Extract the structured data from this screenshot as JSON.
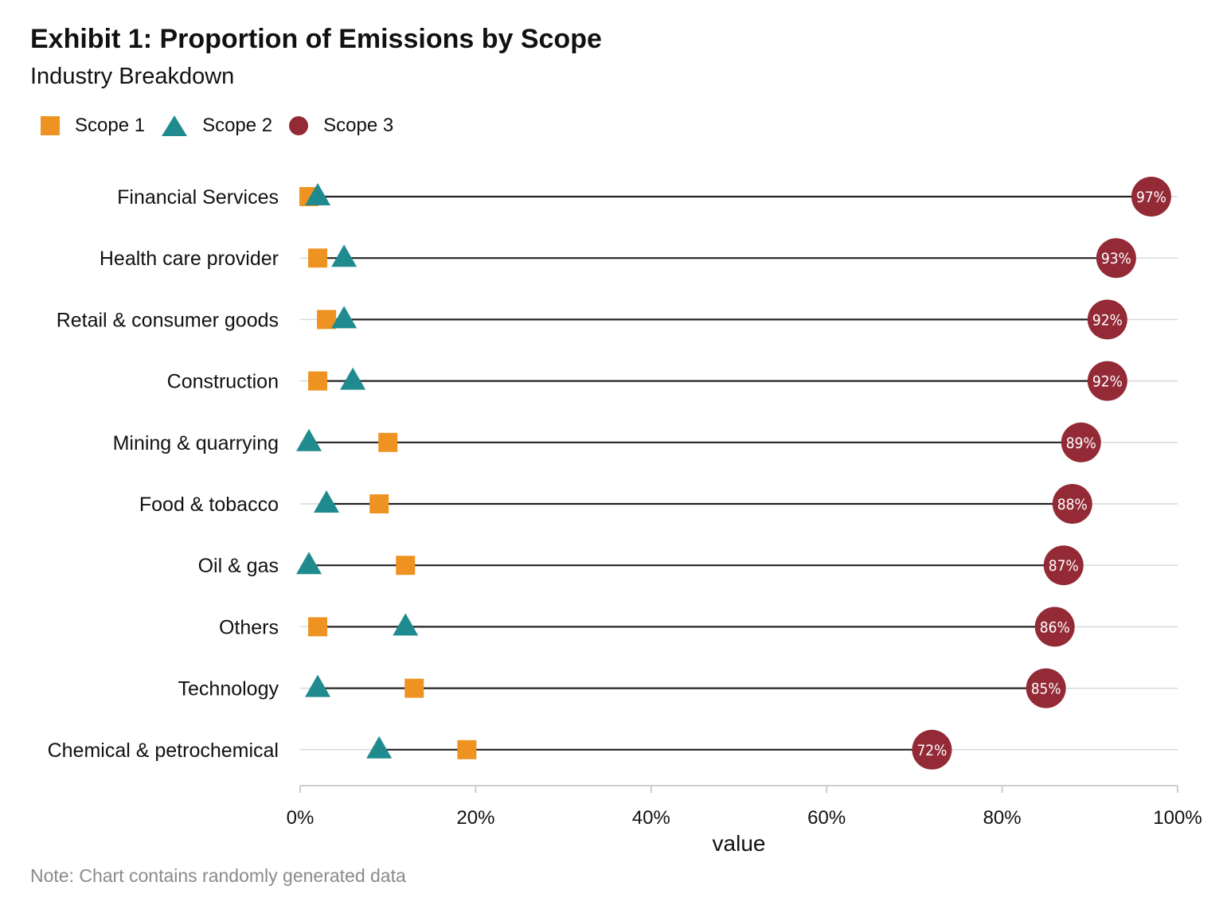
{
  "colors": {
    "scope1": "#ee9321",
    "scope2": "#1f8b8e",
    "scope3": "#932a36",
    "gridline": "#d9d9d9",
    "segment": "#222222",
    "note": "#8a8a8a"
  },
  "legend": {
    "scope1": {
      "label": "Scope 1",
      "icon": "square-icon"
    },
    "scope2": {
      "label": "Scope 2",
      "icon": "triangle-icon"
    },
    "scope3": {
      "label": "Scope 3",
      "icon": "circle-icon"
    }
  },
  "note": "Note: Chart contains randomly generated data",
  "chart_data": {
    "type": "dot-plot",
    "title": "Exhibit 1: Proportion of Emissions by Scope",
    "subtitle": "Industry Breakdown",
    "xlabel": "value",
    "xlim": [
      0,
      100
    ],
    "xticks": [
      0,
      20,
      40,
      60,
      80,
      100
    ],
    "xtick_labels": [
      "0%",
      "20%",
      "40%",
      "60%",
      "80%",
      "100%"
    ],
    "legend_position": "top-left",
    "grid": "horizontal",
    "categories": [
      "Financial Services",
      "Health care provider",
      "Retail & consumer goods",
      "Construction",
      "Mining & quarrying",
      "Food & tobacco",
      "Oil & gas",
      "Others",
      "Technology",
      "Chemical & petrochemical"
    ],
    "series": [
      {
        "name": "Scope 1",
        "marker": "square",
        "values": [
          1,
          2,
          3,
          2,
          10,
          9,
          12,
          2,
          13,
          19
        ]
      },
      {
        "name": "Scope 2",
        "marker": "triangle",
        "values": [
          2,
          5,
          5,
          6,
          1,
          3,
          1,
          12,
          2,
          9
        ]
      },
      {
        "name": "Scope 3",
        "marker": "circle",
        "values": [
          97,
          93,
          92,
          92,
          89,
          88,
          87,
          86,
          85,
          72
        ],
        "data_labels": [
          "97%",
          "93%",
          "92%",
          "92%",
          "89%",
          "88%",
          "87%",
          "86%",
          "85%",
          "72%"
        ]
      }
    ]
  }
}
